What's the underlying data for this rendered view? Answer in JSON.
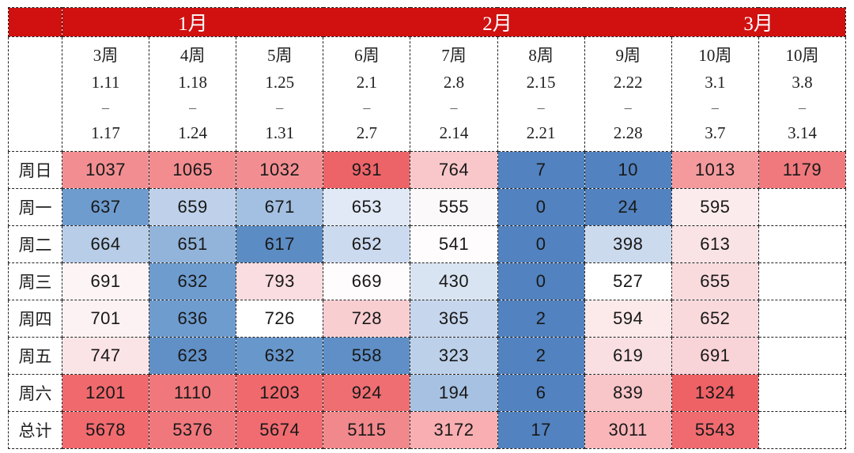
{
  "ui": {
    "range_dash": "–",
    "border_color": "#222222",
    "header_red": "#d11010",
    "header_text_color": "#ffffff"
  },
  "chart_data": {
    "type": "heatmap",
    "title": "",
    "legend_position": "none",
    "months": [
      {
        "label": "1月",
        "span": 3
      },
      {
        "label": "2月",
        "span": 4
      },
      {
        "label": "3月",
        "span": 2
      }
    ],
    "week_columns": [
      {
        "label": "3周",
        "date_start": "1.11",
        "date_end": "1.17"
      },
      {
        "label": "4周",
        "date_start": "1.18",
        "date_end": "1.24"
      },
      {
        "label": "5周",
        "date_start": "1.25",
        "date_end": "1.31"
      },
      {
        "label": "6周",
        "date_start": "2.1",
        "date_end": "2.7"
      },
      {
        "label": "7周",
        "date_start": "2.8",
        "date_end": "2.14"
      },
      {
        "label": "8周",
        "date_start": "2.15",
        "date_end": "2.21"
      },
      {
        "label": "9周",
        "date_start": "2.22",
        "date_end": "2.28"
      },
      {
        "label": "10周",
        "date_start": "3.1",
        "date_end": "3.7"
      },
      {
        "label": "10周",
        "date_start": "3.8",
        "date_end": "3.14"
      }
    ],
    "row_labels": [
      "周日",
      "周一",
      "周二",
      "周三",
      "周四",
      "周五",
      "周六",
      "总计"
    ],
    "values": [
      [
        "1037",
        "1065",
        "1032",
        "931",
        "764",
        "7",
        "10",
        "1013",
        "1179"
      ],
      [
        "637",
        "659",
        "671",
        "653",
        "555",
        "0",
        "24",
        "595",
        ""
      ],
      [
        "664",
        "651",
        "617",
        "652",
        "541",
        "0",
        "398",
        "613",
        ""
      ],
      [
        "691",
        "632",
        "793",
        "669",
        "430",
        "0",
        "527",
        "655",
        ""
      ],
      [
        "701",
        "636",
        "726",
        "728",
        "365",
        "2",
        "594",
        "652",
        ""
      ],
      [
        "747",
        "623",
        "632",
        "558",
        "323",
        "2",
        "619",
        "691",
        ""
      ],
      [
        "1201",
        "1110",
        "1203",
        "924",
        "194",
        "6",
        "839",
        "1324",
        ""
      ],
      [
        "5678",
        "5376",
        "5674",
        "5115",
        "3172",
        "17",
        "3011",
        "5543",
        ""
      ]
    ],
    "cell_colors": [
      [
        "#f28e91",
        "#f28c8f",
        "#f28e91",
        "#ed6468",
        "#f9c7ca",
        "#5282bf",
        "#5282bf",
        "#f49a9d",
        "#f0797d"
      ],
      [
        "#6e9ccf",
        "#bfd1ea",
        "#a3c0e2",
        "#e0e9f5",
        "#fcf9fa",
        "#5282bf",
        "#5282bf",
        "#fcebec",
        "#ffffff"
      ],
      [
        "#b8cde7",
        "#92b4db",
        "#5c8cc4",
        "#ccdaef",
        "#fefcfd",
        "#5282bf",
        "#ccdaee",
        "#fae3e5",
        "#ffffff"
      ],
      [
        "#fdf4f5",
        "#6e9ccf",
        "#fadde0",
        "#fefcfc",
        "#d9e4f2",
        "#5282bf",
        "#ffffff",
        "#f9dbde",
        "#ffffff"
      ],
      [
        "#fdf2f3",
        "#6e9ccf",
        "#ffffff",
        "#f9ced1",
        "#c6d6ec",
        "#5282bf",
        "#fce9ea",
        "#f9d9dc",
        "#ffffff"
      ],
      [
        "#fbe4e6",
        "#6190c7",
        "#6897cb",
        "#5f8fc6",
        "#bcd0e9",
        "#5282bf",
        "#f9dfe2",
        "#f8d3d7",
        "#ffffff"
      ],
      [
        "#ef696d",
        "#f0777b",
        "#ef696d",
        "#ee6e72",
        "#a6c1e1",
        "#5282bf",
        "#f8c5c8",
        "#ee6165",
        "#ffffff"
      ],
      [
        "#f06a6e",
        "#f0787c",
        "#f06c70",
        "#f1888b",
        "#f9aeb1",
        "#5282bf",
        "#f9b5b8",
        "#ef6b6f",
        "#ffffff"
      ]
    ],
    "color_scale": {
      "high": "#ed6468",
      "mid": "#ffffff",
      "low": "#5282bf"
    }
  }
}
